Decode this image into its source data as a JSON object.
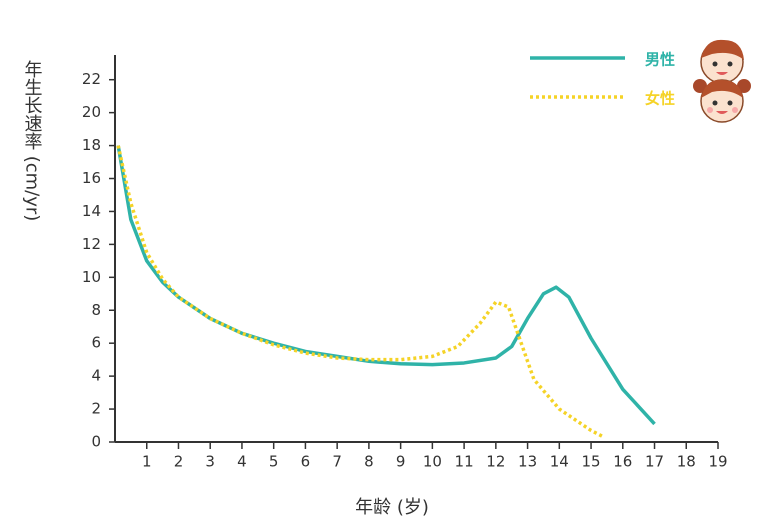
{
  "chart_data": {
    "type": "line",
    "x_label": "年龄 (岁)",
    "y_label": "年生长速率 (cm/yr)",
    "xlim": [
      0,
      19
    ],
    "ylim": [
      0,
      23.5
    ],
    "xticks": [
      1,
      2,
      3,
      4,
      5,
      6,
      7,
      8,
      9,
      10,
      11,
      12,
      13,
      14,
      15,
      16,
      17,
      18,
      19
    ],
    "yticks": [
      0,
      2,
      4,
      6,
      8,
      10,
      12,
      14,
      16,
      18,
      20,
      22
    ],
    "series": [
      {
        "name": "男性",
        "color": "#2fb3a8",
        "dash": "solid",
        "x": [
          0.1,
          0.5,
          1,
          1.5,
          2,
          3,
          4,
          5,
          6,
          7,
          8,
          9,
          10,
          11,
          12,
          12.5,
          13,
          13.5,
          13.9,
          14.3,
          15,
          16,
          17
        ],
        "values": [
          18,
          13.5,
          11,
          9.7,
          8.8,
          7.5,
          6.6,
          6,
          5.5,
          5.2,
          4.9,
          4.75,
          4.7,
          4.8,
          5.1,
          5.8,
          7.5,
          9,
          9.4,
          8.8,
          6.3,
          3.2,
          1.1
        ]
      },
      {
        "name": "女性",
        "color": "#f5d327",
        "dash": "dotted",
        "x": [
          0.1,
          0.5,
          1,
          1.5,
          2,
          3,
          4,
          5,
          6,
          7,
          8,
          9,
          10,
          10.8,
          11.5,
          12,
          12.4,
          12.8,
          13.2,
          14,
          15,
          15.4
        ],
        "values": [
          18,
          14.5,
          11.5,
          9.9,
          8.8,
          7.5,
          6.6,
          5.9,
          5.4,
          5.1,
          5,
          5,
          5.2,
          5.8,
          7.2,
          8.5,
          8.2,
          6,
          3.8,
          2,
          0.7,
          0.3
        ]
      }
    ]
  }
}
